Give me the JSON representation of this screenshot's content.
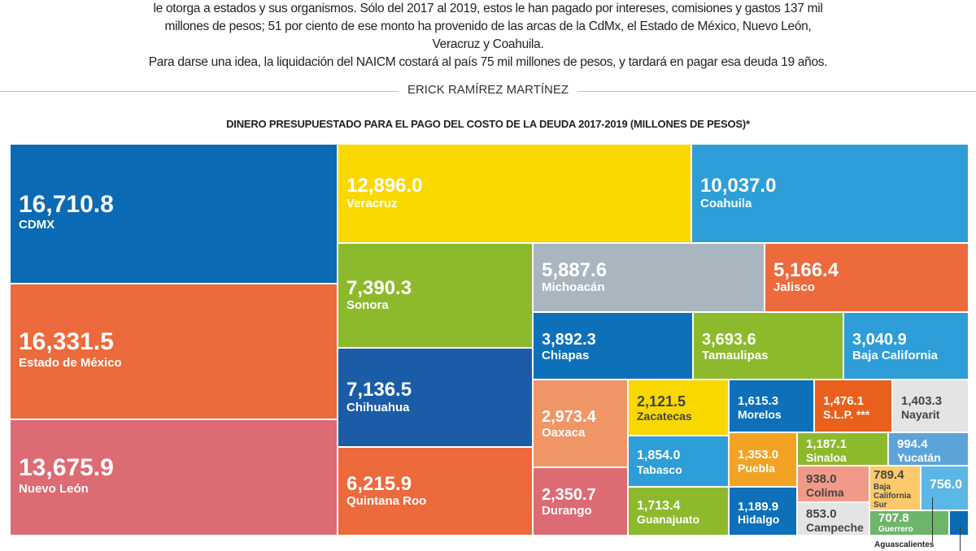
{
  "intro": {
    "lines": [
      "le otorga a estados y sus organismos. Sólo del 2017 al 2019, estos le han pagado por intereses, comisiones y gastos 137 mil",
      "millones de pesos; 51 por ciento de ese monto ha provenido de las arcas de la CdMx, el Estado de México, Nuevo León,",
      "Veracruz y Coahuila.",
      "Para darse una idea, la liquidación del NAICM costará al país 75 mil millones de pesos, y tardará en pagar esa deuda 19 años."
    ],
    "byline": "ERICK RAMÍREZ MARTÍNEZ"
  },
  "chart_data": {
    "type": "treemap",
    "title": "DINERO PRESUPUESTADO PARA EL PAGO DEL COSTO DE LA DEUDA 2017-2019 (MILLONES DE PESOS)*",
    "items": [
      {
        "name": "CDMX",
        "value": 16710.8,
        "label": "16,710.8",
        "color": "#0a6ab4"
      },
      {
        "name": "Estado de México",
        "value": 16331.5,
        "label": "16,331.5",
        "color": "#ec6a3c"
      },
      {
        "name": "Nuevo León",
        "value": 13675.9,
        "label": "13,675.9",
        "color": "#dc6b73"
      },
      {
        "name": "Veracruz",
        "value": 12896.0,
        "label": "12,896.0",
        "color": "#f9d800"
      },
      {
        "name": "Coahuila",
        "value": 10037.0,
        "label": "10,037.0",
        "color": "#2d9ed8"
      },
      {
        "name": "Sonora",
        "value": 7390.3,
        "label": "7,390.3",
        "color": "#8dba2c"
      },
      {
        "name": "Chihuahua",
        "value": 7136.5,
        "label": "7,136.5",
        "color": "#1b5ca7"
      },
      {
        "name": "Quintana Roo",
        "value": 6215.9,
        "label": "6,215.9",
        "color": "#ec6a3c"
      },
      {
        "name": "Michoacán",
        "value": 5887.6,
        "label": "5,887.6",
        "color": "#a9b6c0"
      },
      {
        "name": "Jalisco",
        "value": 5166.4,
        "label": "5,166.4",
        "color": "#ec6a3c"
      },
      {
        "name": "Chiapas",
        "value": 3892.3,
        "label": "3,892.3",
        "color": "#0d70b9"
      },
      {
        "name": "Tamaulipas",
        "value": 3693.6,
        "label": "3,693.6",
        "color": "#8dba2c"
      },
      {
        "name": "Baja California",
        "value": 3040.9,
        "label": "3,040.9",
        "color": "#2d9ed8"
      },
      {
        "name": "Oaxaca",
        "value": 2973.4,
        "label": "2,973.4",
        "color": "#f09566"
      },
      {
        "name": "Durango",
        "value": 2350.7,
        "label": "2,350.7",
        "color": "#dc6b73"
      },
      {
        "name": "Zacatecas",
        "value": 2121.5,
        "label": "2,121.5",
        "color": "#f9d800"
      },
      {
        "name": "Tabasco",
        "value": 1854.0,
        "label": "1,854.0",
        "color": "#2d9ed8"
      },
      {
        "name": "Guanajuato",
        "value": 1713.4,
        "label": "1,713.4",
        "color": "#8dba2c"
      },
      {
        "name": "Morelos",
        "value": 1615.3,
        "label": "1,615.3",
        "color": "#0d70b9"
      },
      {
        "name": "S.L.P. ***",
        "value": 1476.1,
        "label": "1,476.1",
        "color": "#e8601c"
      },
      {
        "name": "Nayarit",
        "value": 1403.3,
        "label": "1,403.3",
        "color": "#e4e4e4"
      },
      {
        "name": "Puebla",
        "value": 1353.0,
        "label": "1,353.0",
        "color": "#f2a324"
      },
      {
        "name": "Hidalgo",
        "value": 1189.9,
        "label": "1,189.9",
        "color": "#0d70b9"
      },
      {
        "name": "Sinaloa",
        "value": 1187.1,
        "label": "1,187.1",
        "color": "#8dba2c"
      },
      {
        "name": "Yucatán",
        "value": 994.4,
        "label": "994.4",
        "color": "#5ba4d9"
      },
      {
        "name": "Colima",
        "value": 938.0,
        "label": "938.0",
        "color": "#f29a88"
      },
      {
        "name": "Campeche",
        "value": 853.0,
        "label": "853.0",
        "color": "#e4e4e4"
      },
      {
        "name": "Baja California Sur",
        "value": 789.4,
        "label": "789.4",
        "color": "#fdc96a"
      },
      {
        "name": "Aguascalientes",
        "value": 756.0,
        "label": "756.0",
        "color": "#5bb7e5"
      },
      {
        "name": "Guerrero",
        "value": 707.8,
        "label": "707.8",
        "color": "#6db56a"
      }
    ]
  }
}
